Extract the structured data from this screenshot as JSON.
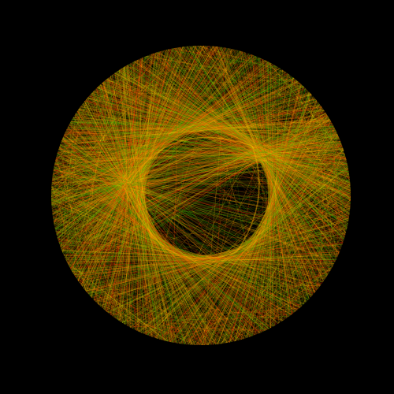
{
  "artwork": {
    "background_color": "#000000",
    "palette": [
      "#ff2a00",
      "#ff6a00",
      "#ffa200",
      "#ffd000",
      "#49c200",
      "#2f8f00"
    ],
    "line_count": 2600,
    "line_opacity": 0.22,
    "seed": 7
  }
}
